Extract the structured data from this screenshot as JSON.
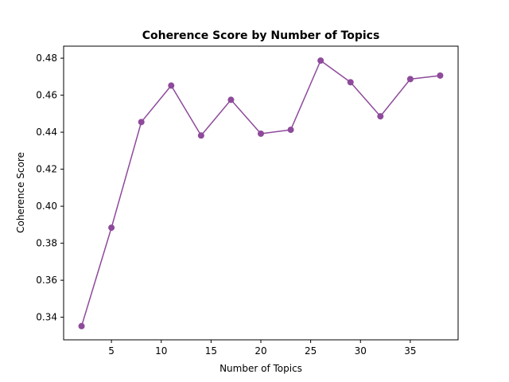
{
  "chart_data": {
    "type": "line",
    "title": "Coherence Score by Number of Topics",
    "xlabel": "Number of Topics",
    "ylabel": "Coherence Score",
    "xlim": [
      0.2,
      39.8
    ],
    "ylim": [
      0.3278,
      0.4865
    ],
    "x_ticks": [
      5,
      10,
      15,
      20,
      25,
      30,
      35
    ],
    "y_ticks": [
      0.34,
      0.36,
      0.38,
      0.4,
      0.42,
      0.44,
      0.46,
      0.48
    ],
    "grid": false,
    "series": [
      {
        "color": "#8e4a9b",
        "marker": "circle",
        "x": [
          2,
          5,
          8,
          11,
          14,
          17,
          20,
          23,
          26,
          29,
          32,
          35,
          38
        ],
        "y": [
          0.3352,
          0.3884,
          0.4455,
          0.4652,
          0.4382,
          0.4575,
          0.4392,
          0.4413,
          0.4787,
          0.467,
          0.4486,
          0.4687,
          0.4706
        ]
      }
    ]
  }
}
